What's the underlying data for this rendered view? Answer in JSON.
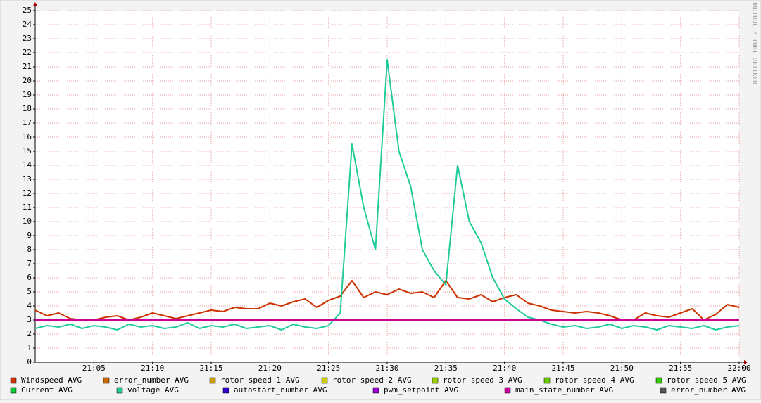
{
  "chart_data": {
    "type": "line",
    "watermark": "RRDTOOL / TOBI OETIKER",
    "x": [
      "21:00",
      "21:01",
      "21:02",
      "21:03",
      "21:04",
      "21:05",
      "21:06",
      "21:07",
      "21:08",
      "21:09",
      "21:10",
      "21:11",
      "21:12",
      "21:13",
      "21:14",
      "21:15",
      "21:16",
      "21:17",
      "21:18",
      "21:19",
      "21:20",
      "21:21",
      "21:22",
      "21:23",
      "21:24",
      "21:25",
      "21:26",
      "21:27",
      "21:28",
      "21:29",
      "21:30",
      "21:31",
      "21:32",
      "21:33",
      "21:34",
      "21:35",
      "21:36",
      "21:37",
      "21:38",
      "21:39",
      "21:40",
      "21:41",
      "21:42",
      "21:43",
      "21:44",
      "21:45",
      "21:46",
      "21:47",
      "21:48",
      "21:49",
      "21:50",
      "21:51",
      "21:52",
      "21:53",
      "21:54",
      "21:55",
      "21:56",
      "21:57",
      "21:58",
      "21:59",
      "22:00"
    ],
    "xlim": [
      "21:00",
      "22:00"
    ],
    "xticks": [
      "21:05",
      "21:10",
      "21:15",
      "21:20",
      "21:25",
      "21:30",
      "21:35",
      "21:40",
      "21:45",
      "21:50",
      "21:55",
      "22:00"
    ],
    "ylim": [
      0,
      25
    ],
    "yticks": [
      0,
      1,
      2,
      3,
      4,
      5,
      6,
      7,
      8,
      9,
      10,
      11,
      12,
      13,
      14,
      15,
      16,
      17,
      18,
      19,
      20,
      21,
      22,
      23,
      24,
      25
    ],
    "grid": true,
    "series": [
      {
        "name": "Windspeed AVG",
        "color": "#cc3300",
        "values": [
          3.7,
          3.3,
          3.5,
          3.1,
          3.0,
          3.0,
          3.2,
          3.3,
          3.0,
          3.2,
          3.5,
          3.3,
          3.1,
          3.3,
          3.5,
          3.7,
          3.6,
          3.9,
          3.8,
          3.8,
          4.2,
          4.0,
          4.3,
          4.5,
          3.9,
          4.4,
          4.7,
          5.8,
          4.6,
          5.0,
          4.8,
          5.2,
          4.9,
          5.0,
          4.6,
          5.8,
          4.6,
          4.5,
          4.8,
          4.3,
          4.6,
          4.8,
          4.2,
          4.0,
          3.7,
          3.6,
          3.5,
          3.6,
          3.5,
          3.3,
          3.0,
          3.0,
          3.5,
          3.3,
          3.2,
          3.5,
          3.8,
          3.0,
          3.4,
          4.1,
          3.9
        ]
      },
      {
        "name": "error_number AVG",
        "color": "#cc6600",
        "values": [
          null,
          null,
          null,
          null,
          null,
          null,
          null,
          null,
          null,
          null,
          null,
          null,
          null,
          null,
          null,
          null,
          null,
          null,
          null,
          null,
          null,
          null,
          null,
          null,
          null,
          null,
          null,
          null,
          null,
          null,
          null,
          null,
          null,
          null,
          null,
          null,
          null,
          null,
          null,
          null,
          null,
          null,
          null,
          null,
          null,
          null,
          null,
          null,
          null,
          null,
          null,
          null,
          null,
          null,
          null,
          null,
          null,
          null,
          null,
          null,
          null
        ]
      },
      {
        "name": "rotor speed 1 AVG",
        "color": "#cc9900",
        "values": [
          null,
          null,
          null,
          null,
          null,
          null,
          null,
          null,
          null,
          null,
          null,
          null,
          null,
          null,
          null,
          null,
          null,
          null,
          null,
          null,
          null,
          null,
          null,
          null,
          null,
          null,
          null,
          null,
          null,
          null,
          null,
          null,
          null,
          null,
          null,
          null,
          null,
          null,
          null,
          null,
          null,
          null,
          null,
          null,
          null,
          null,
          null,
          null,
          null,
          null,
          null,
          null,
          null,
          null,
          null,
          null,
          null,
          null,
          null,
          null,
          null
        ]
      },
      {
        "name": "rotor speed 2 AVG",
        "color": "#cccc00",
        "values": [
          null,
          null,
          null,
          null,
          null,
          null,
          null,
          null,
          null,
          null,
          null,
          null,
          null,
          null,
          null,
          null,
          null,
          null,
          null,
          null,
          null,
          null,
          null,
          null,
          null,
          null,
          null,
          null,
          null,
          null,
          null,
          null,
          null,
          null,
          null,
          null,
          null,
          null,
          null,
          null,
          null,
          null,
          null,
          null,
          null,
          null,
          null,
          null,
          null,
          null,
          null,
          null,
          null,
          null,
          null,
          null,
          null,
          null,
          null,
          null,
          null
        ]
      },
      {
        "name": "rotor speed 3 AVG",
        "color": "#99cc00",
        "values": [
          null,
          null,
          null,
          null,
          null,
          null,
          null,
          null,
          null,
          null,
          null,
          null,
          null,
          null,
          null,
          null,
          null,
          null,
          null,
          null,
          null,
          null,
          null,
          null,
          null,
          null,
          null,
          null,
          null,
          null,
          null,
          null,
          null,
          null,
          null,
          null,
          null,
          null,
          null,
          null,
          null,
          null,
          null,
          null,
          null,
          null,
          null,
          null,
          null,
          null,
          null,
          null,
          null,
          null,
          null,
          null,
          null,
          null,
          null,
          null,
          null
        ]
      },
      {
        "name": "rotor speed 4 AVG",
        "color": "#66cc00",
        "values": [
          null,
          null,
          null,
          null,
          null,
          null,
          null,
          null,
          null,
          null,
          null,
          null,
          null,
          null,
          null,
          null,
          null,
          null,
          null,
          null,
          null,
          null,
          null,
          null,
          null,
          null,
          null,
          null,
          null,
          null,
          null,
          null,
          null,
          null,
          null,
          null,
          null,
          null,
          null,
          null,
          null,
          null,
          null,
          null,
          null,
          null,
          null,
          null,
          null,
          null,
          null,
          null,
          null,
          null,
          null,
          null,
          null,
          null,
          null,
          null,
          null
        ]
      },
      {
        "name": "rotor speed 5 AVG",
        "color": "#33cc00",
        "values": [
          null,
          null,
          null,
          null,
          null,
          null,
          null,
          null,
          null,
          null,
          null,
          null,
          null,
          null,
          null,
          null,
          null,
          null,
          null,
          null,
          null,
          null,
          null,
          null,
          null,
          null,
          null,
          null,
          null,
          null,
          null,
          null,
          null,
          null,
          null,
          null,
          null,
          null,
          null,
          null,
          null,
          null,
          null,
          null,
          null,
          null,
          null,
          null,
          null,
          null,
          null,
          null,
          null,
          null,
          null,
          null,
          null,
          null,
          null,
          null,
          null
        ]
      },
      {
        "name": "Current AVG",
        "color": "#00cc33",
        "values": [
          null,
          null,
          null,
          null,
          null,
          null,
          null,
          null,
          null,
          null,
          null,
          null,
          null,
          null,
          null,
          null,
          null,
          null,
          null,
          null,
          null,
          null,
          null,
          null,
          null,
          null,
          null,
          null,
          null,
          null,
          null,
          null,
          null,
          null,
          null,
          null,
          null,
          null,
          null,
          null,
          null,
          null,
          null,
          null,
          null,
          null,
          null,
          null,
          null,
          null,
          null,
          null,
          null,
          null,
          null,
          null,
          null,
          null,
          null,
          null,
          null
        ]
      },
      {
        "name": "voltage AVG",
        "color": "#1fcc99",
        "values": [
          2.4,
          2.6,
          2.5,
          2.7,
          2.4,
          2.6,
          2.5,
          2.3,
          2.7,
          2.5,
          2.6,
          2.4,
          2.5,
          2.8,
          2.4,
          2.6,
          2.5,
          2.7,
          2.4,
          2.5,
          2.6,
          2.3,
          2.7,
          2.5,
          2.4,
          2.6,
          3.5,
          15.5,
          11,
          8,
          21.5,
          15,
          12.5,
          8,
          6.5,
          5.5,
          14,
          10,
          8.5,
          6,
          4.5,
          3.8,
          3.2,
          3.0,
          2.7,
          2.5,
          2.6,
          2.4,
          2.5,
          2.7,
          2.4,
          2.6,
          2.5,
          2.3,
          2.6,
          2.5,
          2.4,
          2.6,
          2.3,
          2.5,
          2.6
        ]
      },
      {
        "name": "autostart_number AVG",
        "color": "#3300cc",
        "values": [
          null,
          null,
          null,
          null,
          null,
          null,
          null,
          null,
          null,
          null,
          null,
          null,
          null,
          null,
          null,
          null,
          null,
          null,
          null,
          null,
          null,
          null,
          null,
          null,
          null,
          null,
          null,
          null,
          null,
          null,
          null,
          null,
          null,
          null,
          null,
          null,
          null,
          null,
          null,
          null,
          null,
          null,
          null,
          null,
          null,
          null,
          null,
          null,
          null,
          null,
          null,
          null,
          null,
          null,
          null,
          null,
          null,
          null,
          null,
          null,
          null
        ]
      },
      {
        "name": "pwm_setpoint AVG",
        "color": "#9900cc",
        "values": [
          null,
          null,
          null,
          null,
          null,
          null,
          null,
          null,
          null,
          null,
          null,
          null,
          null,
          null,
          null,
          null,
          null,
          null,
          null,
          null,
          null,
          null,
          null,
          null,
          null,
          null,
          null,
          null,
          null,
          null,
          null,
          null,
          null,
          null,
          null,
          null,
          null,
          null,
          null,
          null,
          null,
          null,
          null,
          null,
          null,
          null,
          null,
          null,
          null,
          null,
          null,
          null,
          null,
          null,
          null,
          null,
          null,
          null,
          null,
          null,
          null
        ]
      },
      {
        "name": "main_state_number AVG",
        "color": "#cc0099",
        "values": [
          3,
          3,
          3,
          3,
          3,
          3,
          3,
          3,
          3,
          3,
          3,
          3,
          3,
          3,
          3,
          3,
          3,
          3,
          3,
          3,
          3,
          3,
          3,
          3,
          3,
          3,
          3,
          3,
          3,
          3,
          3,
          3,
          3,
          3,
          3,
          3,
          3,
          3,
          3,
          3,
          3,
          3,
          3,
          3,
          3,
          3,
          3,
          3,
          3,
          3,
          3,
          3,
          3,
          3,
          3,
          3,
          3,
          3,
          3,
          3,
          3
        ]
      },
      {
        "name": "error_number AVG",
        "color": "#555555",
        "values": [
          null,
          null,
          null,
          null,
          null,
          null,
          null,
          null,
          null,
          null,
          null,
          null,
          null,
          null,
          null,
          null,
          null,
          null,
          null,
          null,
          null,
          null,
          null,
          null,
          null,
          null,
          null,
          null,
          null,
          null,
          null,
          null,
          null,
          null,
          null,
          null,
          null,
          null,
          null,
          null,
          null,
          null,
          null,
          null,
          null,
          null,
          null,
          null,
          null,
          null,
          null,
          null,
          null,
          null,
          null,
          null,
          null,
          null,
          null,
          null,
          null
        ]
      }
    ]
  }
}
